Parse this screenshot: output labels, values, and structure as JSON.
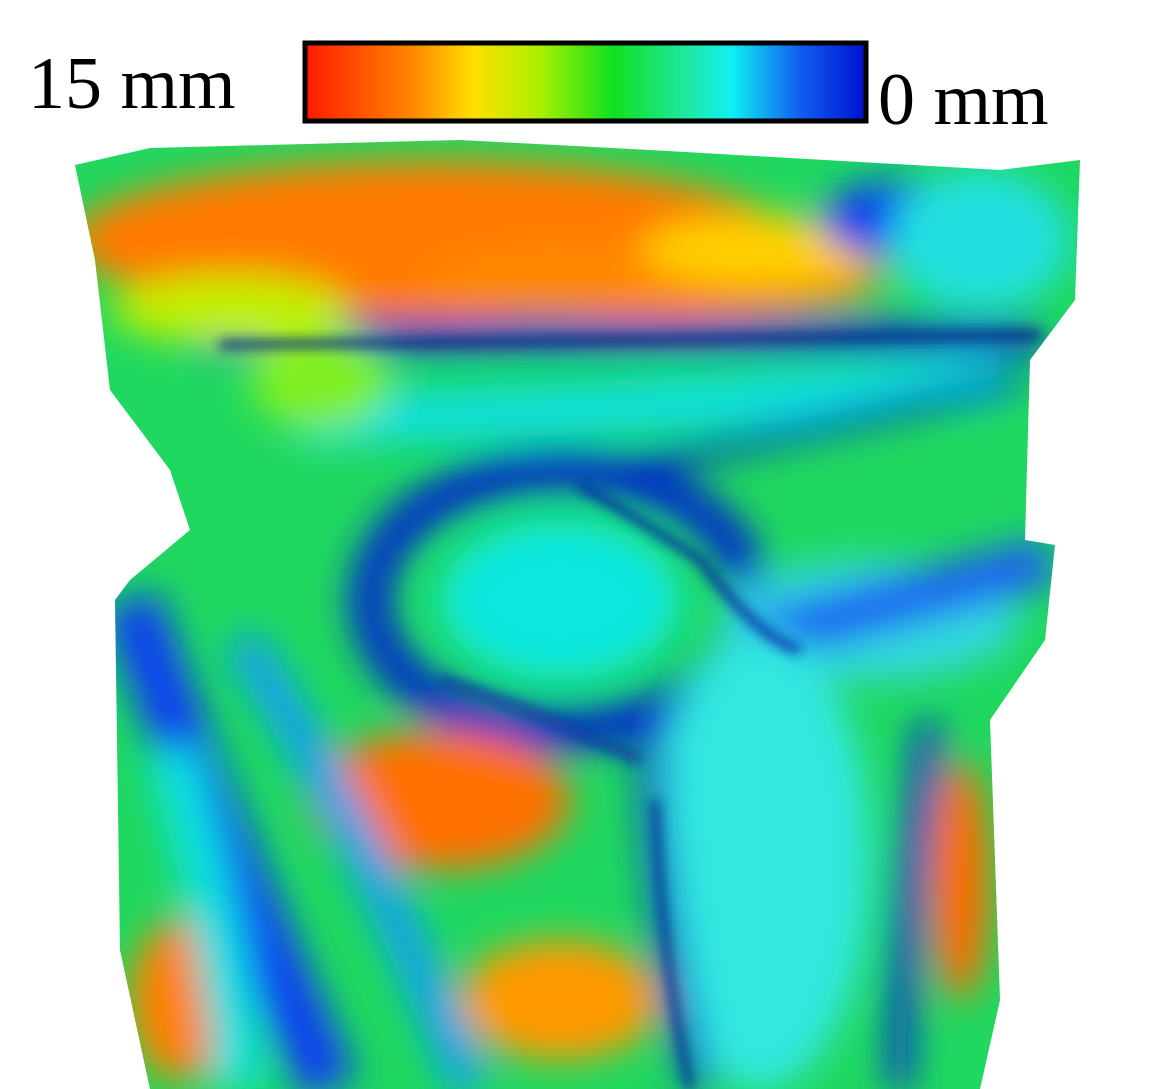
{
  "colorbar": {
    "left_label": "15 mm",
    "right_label": "0 mm"
  }
}
